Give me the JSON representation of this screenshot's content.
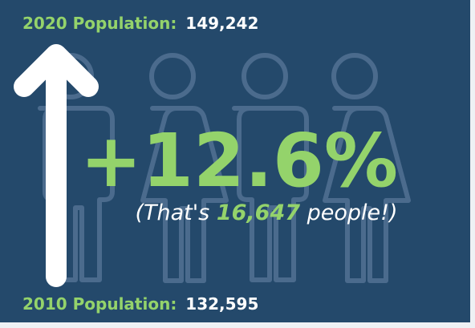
{
  "top": {
    "label": "2020 Population:",
    "value": "149,242"
  },
  "change": {
    "percent": "+12.6%",
    "note_before": "(That's ",
    "note_number": "16,647",
    "note_after": " people!)"
  },
  "bottom": {
    "label": "2010 Population:",
    "value": "132,595"
  }
}
